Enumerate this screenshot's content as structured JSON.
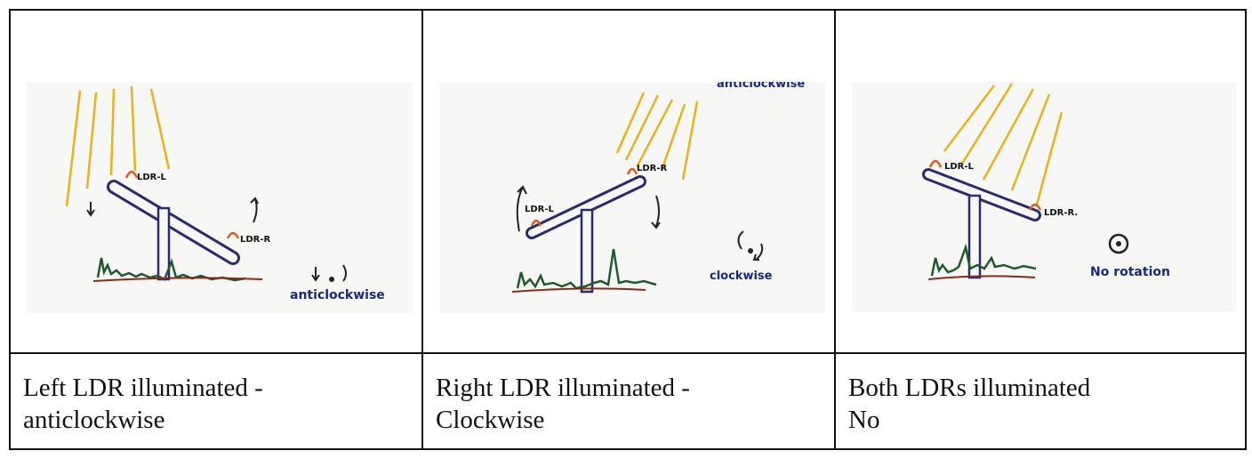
{
  "columns": [
    {
      "sketch": {
        "label_left": "LDR-L",
        "label_right": "LDR-R",
        "rotation_label": "anticlockwise"
      },
      "caption": {
        "line1_words": [
          "Left",
          "LDR",
          "illuminated",
          "-"
        ],
        "line2": "anticlockwise"
      }
    },
    {
      "sketch": {
        "label_left": "LDR-L",
        "label_right": "LDR-R",
        "rotation_label": "clockwise",
        "top_partial_text": "anticlockwise"
      },
      "caption": {
        "line1": "Right LDR illuminated -",
        "line2": "Clockwise"
      }
    },
    {
      "sketch": {
        "label_left": "LDR-L",
        "label_right": "LDR-R.",
        "rotation_label": "No rotation"
      },
      "caption": {
        "line1": "Both LDRs illuminated",
        "line2": "No"
      }
    }
  ],
  "colors": {
    "sun_rays": "#e8b21a",
    "panel": "#2a2a6e",
    "ldr": "#e05a1a",
    "grass": "#1e5a2e",
    "ground": "#8a2a1a",
    "label_ink": "#1a2a7a"
  }
}
